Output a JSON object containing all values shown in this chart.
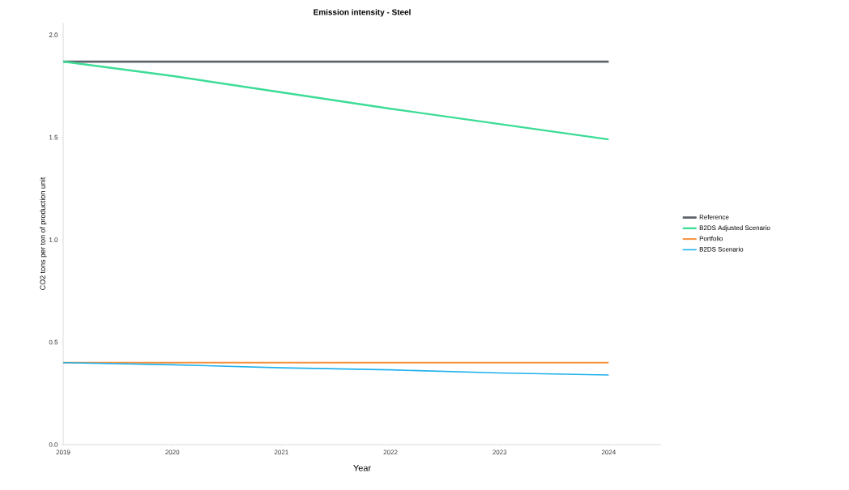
{
  "chart_data": {
    "type": "line",
    "title": "Emission intensity - Steel",
    "xlabel": "Year",
    "ylabel": "CO2 tons per ton of production  unit",
    "x": [
      2019,
      2020,
      2021,
      2022,
      2023,
      2024
    ],
    "series": [
      {
        "name": "Reference",
        "color": "#5f656c",
        "values": [
          1.87,
          1.87,
          1.87,
          1.87,
          1.87,
          1.87
        ]
      },
      {
        "name": "B2DS Adjusted Scenario",
        "color": "#3ddc97",
        "values": [
          1.87,
          1.8,
          1.72,
          1.64,
          1.565,
          1.49
        ]
      },
      {
        "name": "Portfolio",
        "color": "#f5923e",
        "values": [
          0.4,
          0.4,
          0.4,
          0.4,
          0.4,
          0.4
        ]
      },
      {
        "name": "B2DS Scenario",
        "color": "#1fb1ec",
        "values": [
          0.4,
          0.39,
          0.375,
          0.365,
          0.35,
          0.34
        ]
      }
    ],
    "xlim": [
      2019,
      2024.48
    ],
    "ylim": [
      0,
      2.06
    ],
    "xticks": [
      2019,
      2020,
      2021,
      2022,
      2023,
      2024
    ],
    "yticks": [
      {
        "value": 0,
        "label": "0.0"
      },
      {
        "value": 0.5,
        "label": "0.5"
      },
      {
        "value": 1,
        "label": "1.0"
      },
      {
        "value": 1.5,
        "label": "1.5"
      },
      {
        "value": 2,
        "label": "2.0"
      }
    ],
    "grid": false,
    "legend": "right",
    "line_style": "solid",
    "marker": "none"
  }
}
